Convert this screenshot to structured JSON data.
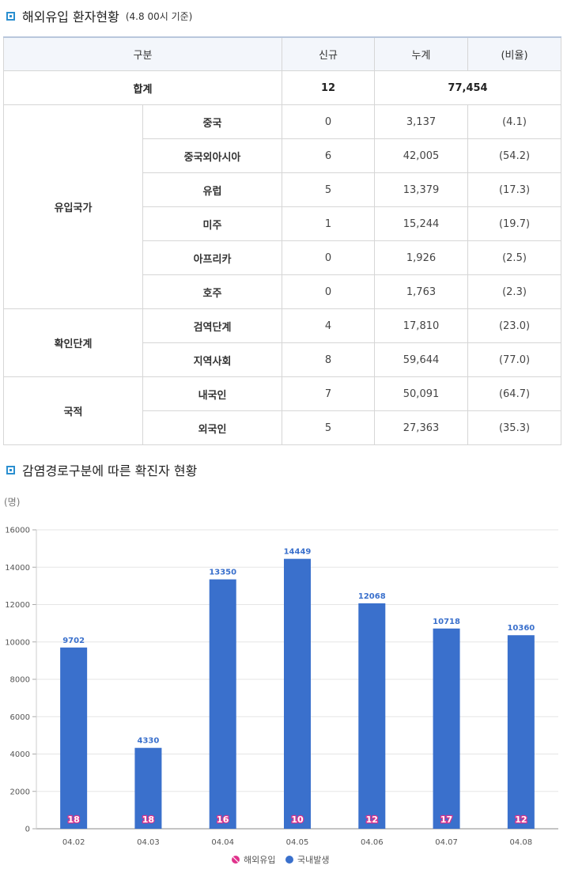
{
  "section1": {
    "title": "해외유입 환자현황",
    "subtitle": "(4.8 00시 기준)"
  },
  "table": {
    "headers": [
      "구분",
      "신규",
      "누계",
      "(비율)"
    ],
    "total": {
      "label": "합계",
      "new": "12",
      "cumulative": "77,454"
    },
    "groups": [
      {
        "name": "유입국가",
        "rows": [
          {
            "cat": "중국",
            "new": "0",
            "cum": "3,137",
            "ratio": "(4.1)"
          },
          {
            "cat": "중국외아시아",
            "new": "6",
            "cum": "42,005",
            "ratio": "(54.2)"
          },
          {
            "cat": "유럽",
            "new": "5",
            "cum": "13,379",
            "ratio": "(17.3)"
          },
          {
            "cat": "미주",
            "new": "1",
            "cum": "15,244",
            "ratio": "(19.7)"
          },
          {
            "cat": "아프리카",
            "new": "0",
            "cum": "1,926",
            "ratio": "(2.5)"
          },
          {
            "cat": "호주",
            "new": "0",
            "cum": "1,763",
            "ratio": "(2.3)"
          }
        ]
      },
      {
        "name": "확인단계",
        "rows": [
          {
            "cat": "검역단계",
            "new": "4",
            "cum": "17,810",
            "ratio": "(23.0)"
          },
          {
            "cat": "지역사회",
            "new": "8",
            "cum": "59,644",
            "ratio": "(77.0)"
          }
        ]
      },
      {
        "name": "국적",
        "rows": [
          {
            "cat": "내국인",
            "new": "7",
            "cum": "50,091",
            "ratio": "(64.7)"
          },
          {
            "cat": "외국인",
            "new": "5",
            "cum": "27,363",
            "ratio": "(35.3)"
          }
        ]
      }
    ]
  },
  "section2": {
    "title": "감염경로구분에 따른 확진자 현황"
  },
  "chart_data": {
    "type": "bar",
    "ylabel": "(명)",
    "ylim": [
      0,
      16000
    ],
    "yticks": [
      0,
      2000,
      4000,
      6000,
      8000,
      10000,
      12000,
      14000,
      16000
    ],
    "grid": true,
    "legend_position": "bottom-center",
    "categories": [
      "04.02",
      "04.03",
      "04.04",
      "04.05",
      "04.06",
      "04.07",
      "04.08"
    ],
    "series": [
      {
        "name": "해외유입",
        "color": "#e0328c",
        "values": [
          18,
          18,
          16,
          10,
          12,
          17,
          12
        ]
      },
      {
        "name": "국내발생",
        "color": "#3a70cc",
        "values": [
          9702,
          4330,
          13350,
          14449,
          12068,
          10718,
          10360
        ]
      }
    ]
  }
}
